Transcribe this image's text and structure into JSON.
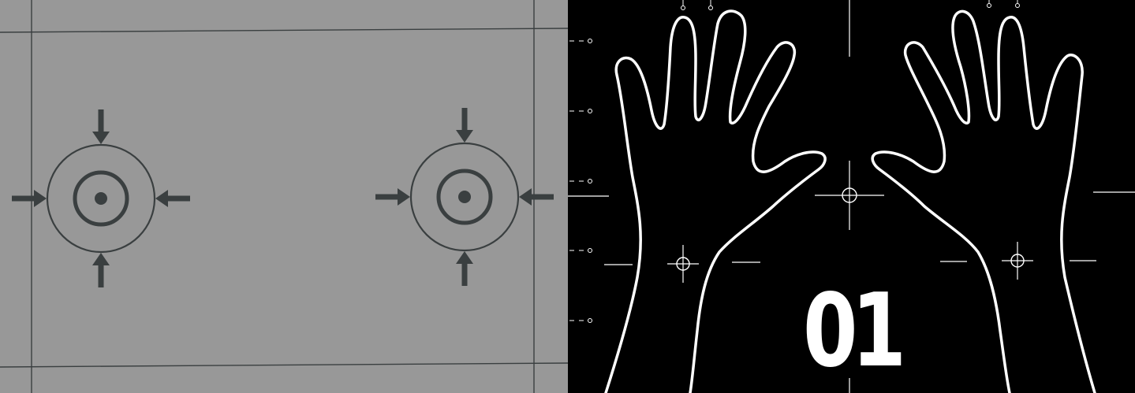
{
  "panel_number": "01",
  "colors": {
    "left_background": "#989898",
    "left_ink": "#3a3f40",
    "right_background": "#000000",
    "right_ink": "#ffffff"
  },
  "icons": {
    "left_panel": [
      "target-icon",
      "inward-arrow-icon"
    ],
    "right_panel": [
      "hand-outline-icon",
      "crosshair-icon"
    ]
  }
}
